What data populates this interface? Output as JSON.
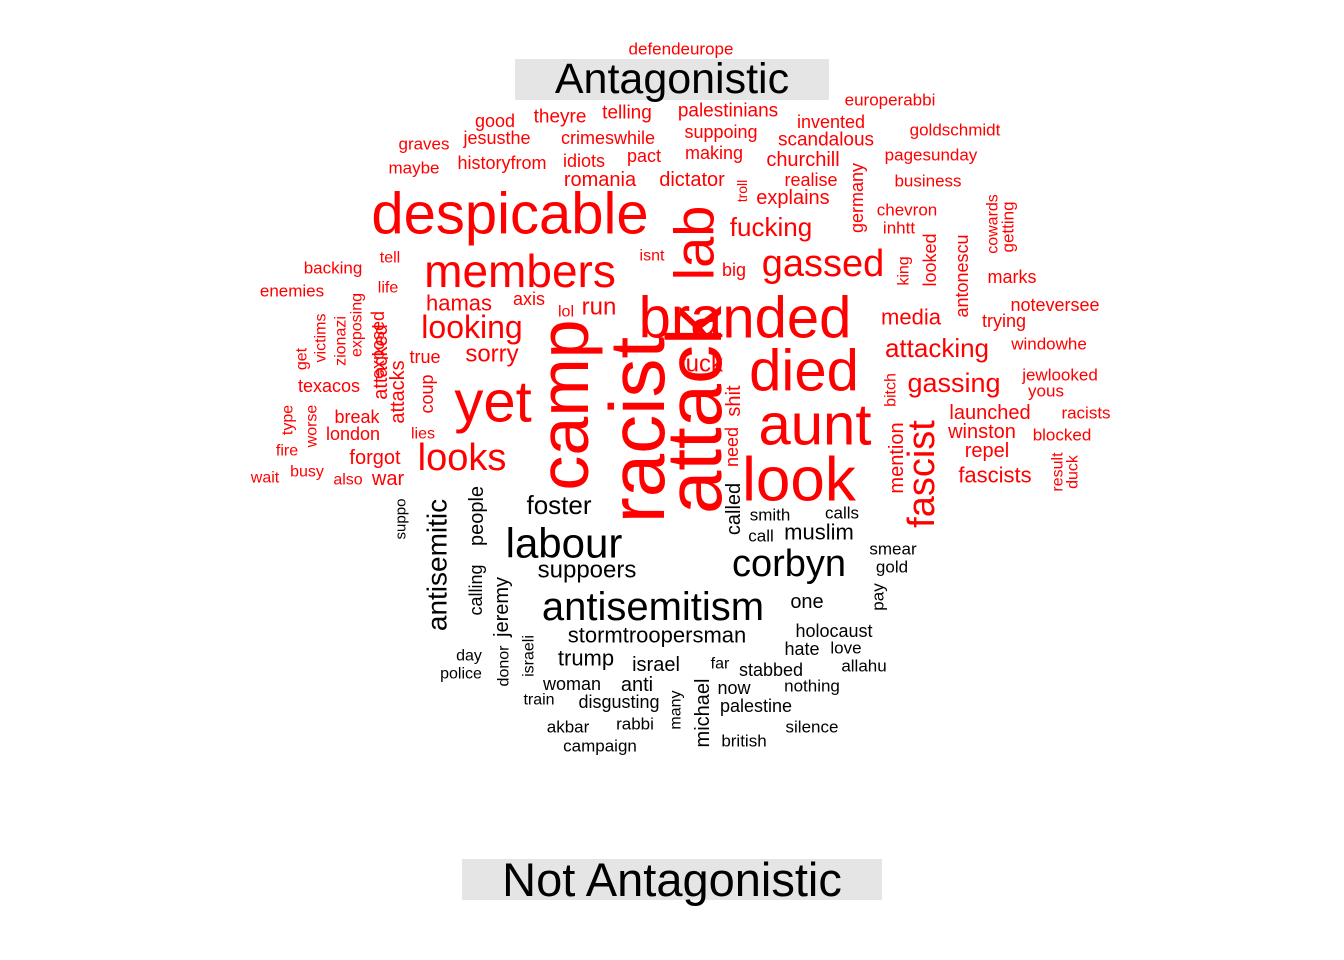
{
  "groups": [
    {
      "label": "Antagonistic",
      "color": "#ff0000"
    },
    {
      "label": "Not Antagonistic",
      "color": "#000000"
    }
  ],
  "words": [
    {
      "text": "despicable",
      "group": 0
    },
    {
      "text": "members",
      "group": 0
    },
    {
      "text": "branded",
      "group": 0
    },
    {
      "text": "died",
      "group": 0
    },
    {
      "text": "aunt",
      "group": 0
    },
    {
      "text": "look",
      "group": 0
    },
    {
      "text": "attack",
      "group": 0
    },
    {
      "text": "racist",
      "group": 0
    },
    {
      "text": "camp",
      "group": 0
    },
    {
      "text": "yet",
      "group": 0
    },
    {
      "text": "lab",
      "group": 0
    },
    {
      "text": "gassed",
      "group": 0
    },
    {
      "text": "looking",
      "group": 0
    },
    {
      "text": "looks",
      "group": 0
    },
    {
      "text": "fascist",
      "group": 0
    },
    {
      "text": "fucking",
      "group": 0
    },
    {
      "text": "attacking",
      "group": 0
    },
    {
      "text": "gassing",
      "group": 0
    },
    {
      "text": "hamas",
      "group": 0
    },
    {
      "text": "sorry",
      "group": 0
    },
    {
      "text": "run",
      "group": 0
    },
    {
      "text": "media",
      "group": 0
    },
    {
      "text": "fuck",
      "group": 0
    },
    {
      "text": "explains",
      "group": 0
    },
    {
      "text": "fascists",
      "group": 0
    },
    {
      "text": "launched",
      "group": 0
    },
    {
      "text": "winston",
      "group": 0
    },
    {
      "text": "repel",
      "group": 0
    },
    {
      "text": "forgot",
      "group": 0
    },
    {
      "text": "war",
      "group": 0
    },
    {
      "text": "break",
      "group": 0
    },
    {
      "text": "london",
      "group": 0
    },
    {
      "text": "axis",
      "group": 0
    },
    {
      "text": "big",
      "group": 0
    },
    {
      "text": "shit",
      "group": 0
    },
    {
      "text": "need",
      "group": 0
    },
    {
      "text": "mention",
      "group": 0
    },
    {
      "text": "bitch",
      "group": 0
    },
    {
      "text": "exposed",
      "group": 0
    },
    {
      "text": "attacked",
      "group": 0
    },
    {
      "text": "attacks",
      "group": 0
    },
    {
      "text": "coup",
      "group": 0
    },
    {
      "text": "true",
      "group": 0
    },
    {
      "text": "lies",
      "group": 0
    },
    {
      "text": "texacos",
      "group": 0
    },
    {
      "text": "worse",
      "group": 0
    },
    {
      "text": "busy",
      "group": 0
    },
    {
      "text": "also",
      "group": 0
    },
    {
      "text": "fire",
      "group": 0
    },
    {
      "text": "wait",
      "group": 0
    },
    {
      "text": "type",
      "group": 0
    },
    {
      "text": "get",
      "group": 0
    },
    {
      "text": "victims",
      "group": 0
    },
    {
      "text": "zionazi",
      "group": 0
    },
    {
      "text": "exposing",
      "group": 0
    },
    {
      "text": "life",
      "group": 0
    },
    {
      "text": "tell",
      "group": 0
    },
    {
      "text": "backing",
      "group": 0
    },
    {
      "text": "enemies",
      "group": 0
    },
    {
      "text": "lol",
      "group": 0
    },
    {
      "text": "isnt",
      "group": 0
    },
    {
      "text": "troll",
      "group": 0
    },
    {
      "text": "dictator",
      "group": 0
    },
    {
      "text": "romania",
      "group": 0
    },
    {
      "text": "idiots",
      "group": 0
    },
    {
      "text": "pact",
      "group": 0
    },
    {
      "text": "making",
      "group": 0
    },
    {
      "text": "churchill",
      "group": 0
    },
    {
      "text": "realise",
      "group": 0
    },
    {
      "text": "germany",
      "group": 0
    },
    {
      "text": "chevron",
      "group": 0
    },
    {
      "text": "inhtt",
      "group": 0
    },
    {
      "text": "king",
      "group": 0
    },
    {
      "text": "looked",
      "group": 0
    },
    {
      "text": "antonescu",
      "group": 0
    },
    {
      "text": "cowards",
      "group": 0
    },
    {
      "text": "getting",
      "group": 0
    },
    {
      "text": "marks",
      "group": 0
    },
    {
      "text": "noteversee",
      "group": 0
    },
    {
      "text": "trying",
      "group": 0
    },
    {
      "text": "windowhe",
      "group": 0
    },
    {
      "text": "jewlooked",
      "group": 0
    },
    {
      "text": "yous",
      "group": 0
    },
    {
      "text": "racists",
      "group": 0
    },
    {
      "text": "blocked",
      "group": 0
    },
    {
      "text": "result",
      "group": 0
    },
    {
      "text": "duck",
      "group": 0
    },
    {
      "text": "business",
      "group": 0
    },
    {
      "text": "pagesunday",
      "group": 0
    },
    {
      "text": "goldschmidt",
      "group": 0
    },
    {
      "text": "europerabbi",
      "group": 0
    },
    {
      "text": "scandalous",
      "group": 0
    },
    {
      "text": "invented",
      "group": 0
    },
    {
      "text": "suppoing",
      "group": 0
    },
    {
      "text": "palestinians",
      "group": 0
    },
    {
      "text": "telling",
      "group": 0
    },
    {
      "text": "theyre",
      "group": 0
    },
    {
      "text": "good",
      "group": 0
    },
    {
      "text": "jesusthe",
      "group": 0
    },
    {
      "text": "crimeswhile",
      "group": 0
    },
    {
      "text": "historyfrom",
      "group": 0
    },
    {
      "text": "graves",
      "group": 0
    },
    {
      "text": "maybe",
      "group": 0
    },
    {
      "text": "defendeurope",
      "group": 0
    },
    {
      "text": "labour",
      "group": 1
    },
    {
      "text": "antisemitism",
      "group": 1
    },
    {
      "text": "corbyn",
      "group": 1
    },
    {
      "text": "antisemitic",
      "group": 1
    },
    {
      "text": "foster",
      "group": 1
    },
    {
      "text": "people",
      "group": 1
    },
    {
      "text": "calling",
      "group": 1
    },
    {
      "text": "jeremy",
      "group": 1
    },
    {
      "text": "suppoers",
      "group": 1
    },
    {
      "text": "stormtroopersman",
      "group": 1
    },
    {
      "text": "called",
      "group": 1
    },
    {
      "text": "smith",
      "group": 1
    },
    {
      "text": "call",
      "group": 1
    },
    {
      "text": "muslim",
      "group": 1
    },
    {
      "text": "calls",
      "group": 1
    },
    {
      "text": "smear",
      "group": 1
    },
    {
      "text": "gold",
      "group": 1
    },
    {
      "text": "pay",
      "group": 1
    },
    {
      "text": "one",
      "group": 1
    },
    {
      "text": "holocaust",
      "group": 1
    },
    {
      "text": "hate",
      "group": 1
    },
    {
      "text": "love",
      "group": 1
    },
    {
      "text": "allahu",
      "group": 1
    },
    {
      "text": "trump",
      "group": 1
    },
    {
      "text": "israel",
      "group": 1
    },
    {
      "text": "far",
      "group": 1
    },
    {
      "text": "stabbed",
      "group": 1
    },
    {
      "text": "nothing",
      "group": 1
    },
    {
      "text": "anti",
      "group": 1
    },
    {
      "text": "now",
      "group": 1
    },
    {
      "text": "woman",
      "group": 1
    },
    {
      "text": "disgusting",
      "group": 1
    },
    {
      "text": "palestine",
      "group": 1
    },
    {
      "text": "michael",
      "group": 1
    },
    {
      "text": "many",
      "group": 1
    },
    {
      "text": "rabbi",
      "group": 1
    },
    {
      "text": "akbar",
      "group": 1
    },
    {
      "text": "campaign",
      "group": 1
    },
    {
      "text": "british",
      "group": 1
    },
    {
      "text": "silence",
      "group": 1
    },
    {
      "text": "train",
      "group": 1
    },
    {
      "text": "israeli",
      "group": 1
    },
    {
      "text": "donor",
      "group": 1
    },
    {
      "text": "day",
      "group": 1
    },
    {
      "text": "police",
      "group": 1
    },
    {
      "text": "suppo",
      "group": 1
    }
  ]
}
